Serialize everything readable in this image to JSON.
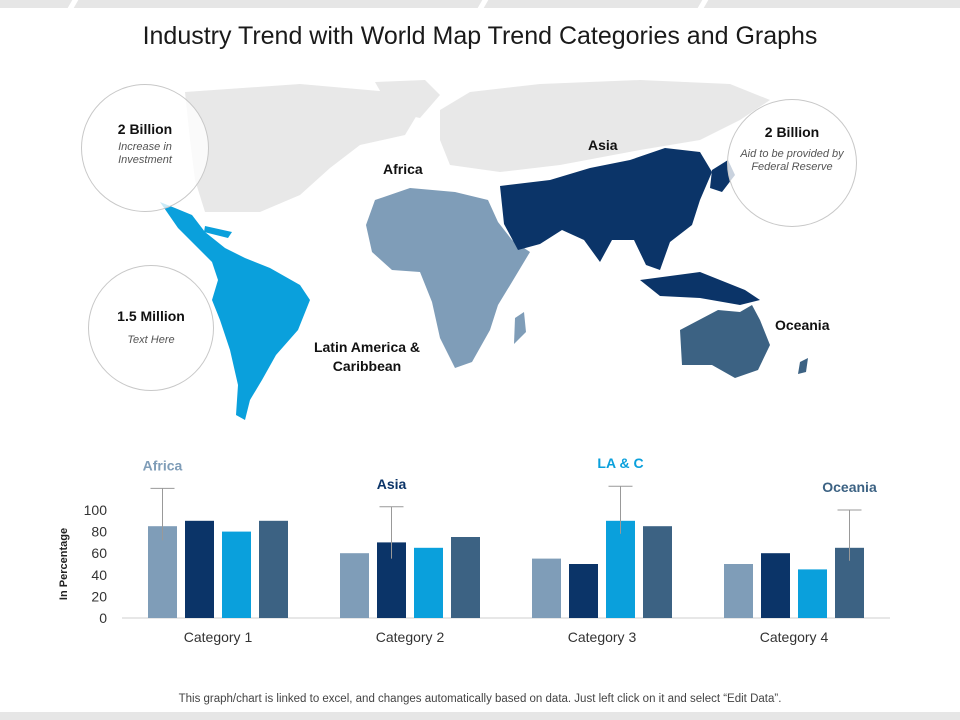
{
  "title": "Industry Trend with World Map Trend Categories and Graphs",
  "colors": {
    "africa": "#7f9db8",
    "asia": "#0b3468",
    "la_c": "#0aa0dc",
    "oceania": "#3c6283",
    "land_grey": "#e8e8e8"
  },
  "callouts": [
    {
      "value": "2 Billion",
      "text": "Increase in Investment"
    },
    {
      "value": "1.5 Million",
      "text": "Text Here"
    },
    {
      "value": "2 Billion",
      "text": "Aid to be provided by Federal Reserve"
    }
  ],
  "regions": {
    "africa": "Africa",
    "asia": "Asia",
    "oceania": "Oceania",
    "la_c": "Latin America & Caribbean"
  },
  "chart_data": {
    "type": "bar",
    "categories": [
      "Category 1",
      "Category 2",
      "Category 3",
      "Category 4"
    ],
    "series": [
      {
        "name": "Africa",
        "values": [
          85,
          60,
          55,
          50
        ]
      },
      {
        "name": "Asia",
        "values": [
          90,
          70,
          50,
          60
        ]
      },
      {
        "name": "LA & C",
        "values": [
          80,
          65,
          90,
          45
        ]
      },
      {
        "name": "Oceania",
        "values": [
          90,
          75,
          85,
          65
        ]
      }
    ],
    "error_bars": [
      {
        "category": "Category 1",
        "series": "Africa",
        "low": 72,
        "high": 120
      },
      {
        "category": "Category 2",
        "series": "Asia",
        "low": 55,
        "high": 103
      },
      {
        "category": "Category 3",
        "series": "LA & C",
        "low": 78,
        "high": 122
      },
      {
        "category": "Category 4",
        "series": "Oceania",
        "low": 53,
        "high": 100
      }
    ],
    "callout_labels": [
      {
        "category": "Category 1",
        "text": "Africa"
      },
      {
        "category": "Category 2",
        "text": "Asia"
      },
      {
        "category": "Category 3",
        "text": "LA & C"
      },
      {
        "category": "Category 4",
        "text": "Oceania"
      }
    ],
    "ylabel": "In Percentage",
    "yticks": [
      0,
      20,
      40,
      60,
      80,
      100
    ],
    "ylim": [
      0,
      100
    ],
    "legend": "none"
  },
  "footer": "This graph/chart is linked to excel, and changes automatically based on data. Just left click on it and select “Edit Data”."
}
